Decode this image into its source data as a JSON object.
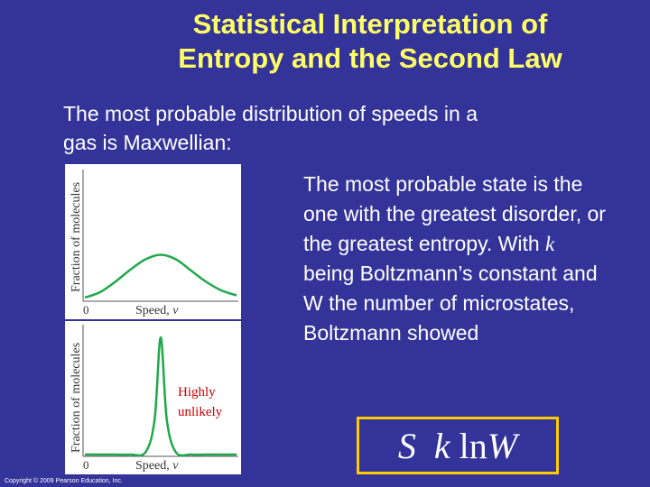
{
  "title_line1": "Statistical Interpretation of",
  "title_line2": "Entropy and the Second Law",
  "intro_line1": "The most probable distribution of speeds in a",
  "intro_line2": "gas is Maxwellian:",
  "side_text": {
    "part1": "The most probable state is the one with  the greatest disorder, or the greatest entropy. With ",
    "k": "k",
    "part2": " being Boltzmann’s constant and ",
    "W": "W",
    "part3": "  the number of microstates, Boltzmann showed"
  },
  "formula": {
    "S": "S",
    "rel": "",
    "k": "k",
    "ln": "ln",
    "W": "W"
  },
  "graph_top": {
    "ylabel": "Fraction of molecules",
    "xlabel": "Speed, ",
    "xvar": "v",
    "origin": "0"
  },
  "graph_bottom": {
    "ylabel": "Fraction of molecules",
    "xlabel": "Speed, ",
    "xvar": "v",
    "origin": "0",
    "annotation_line1": "Highly",
    "annotation_line2": "unlikely"
  },
  "copyright": "Copyright © 2009 Pearson Education, Inc.",
  "colors": {
    "background": "#333399",
    "title": "#FFFF66",
    "curve": "#1FA84A",
    "annotation": "#CC0000",
    "box": "#FFCC00"
  },
  "chart_data": [
    {
      "type": "line",
      "title": "",
      "xlabel": "Speed, v",
      "ylabel": "Fraction of molecules",
      "description_shape": "broad",
      "series": [
        {
          "x": [
            0,
            1,
            2,
            3,
            4,
            5,
            6,
            7,
            8,
            9,
            10
          ],
          "values": [
            0,
            0.12,
            0.35,
            0.62,
            0.85,
            0.95,
            0.85,
            0.6,
            0.35,
            0.16,
            0.05
          ]
        }
      ]
    },
    {
      "type": "line",
      "title": "",
      "xlabel": "Speed, v",
      "ylabel": "Fraction of molecules",
      "annotation": "Highly unlikely",
      "series": [
        {
          "x": [
            0,
            1,
            2,
            3,
            4,
            4.6,
            5,
            5.4,
            6,
            7,
            8,
            9,
            10
          ],
          "values": [
            0,
            0,
            0,
            0,
            0.02,
            0.3,
            1.0,
            0.3,
            0.02,
            0,
            0,
            0,
            0
          ]
        }
      ]
    }
  ]
}
